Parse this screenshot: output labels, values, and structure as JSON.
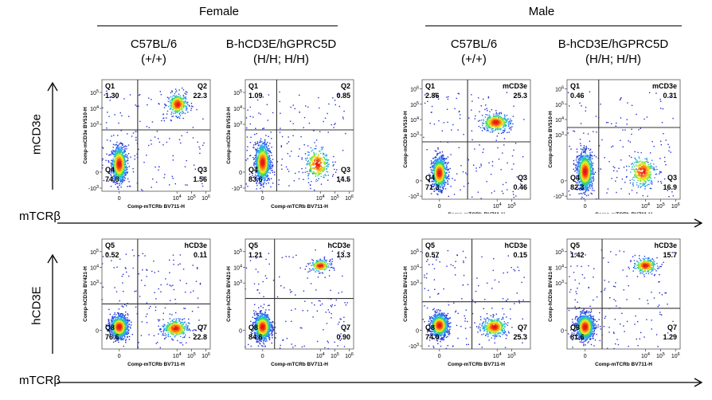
{
  "groups": [
    {
      "label": "Female",
      "strains": [
        {
          "name": "C57BL/6",
          "genotype": "(+/+)"
        },
        {
          "name": "B-hCD3E/hGPRC5D",
          "genotype": "(H/H; H/H)"
        }
      ]
    },
    {
      "label": "Male",
      "strains": [
        {
          "name": "C57BL/6",
          "genotype": "(+/+)"
        },
        {
          "name": "B-hCD3E/hGPRC5D",
          "genotype": "(H/H; H/H)"
        }
      ]
    }
  ],
  "row_labels": {
    "row1_y": "mCD3e",
    "row2_y": "hCD3E",
    "x_word": "mTCRβ"
  },
  "chart_data": [
    {
      "type": "scatter",
      "row": 1,
      "col": 1,
      "x_label": "Comp-mTCRb BV711-H",
      "y_label": "Comp-mCD3e BV510-H",
      "x_ticks": [
        "0",
        "10^4",
        "10^5",
        "10^6"
      ],
      "y_ticks": [
        "10^5",
        "10^4",
        "10^3",
        "0",
        "-10^3"
      ],
      "quadrants": {
        "Q1": {
          "name": "Q1",
          "value": "1.30"
        },
        "Q2": {
          "name": "Q2",
          "value": "22.3"
        },
        "Q3": {
          "name": "Q3",
          "value": "1.56"
        },
        "Q4": {
          "name": "Q4",
          "value": "74.8"
        }
      },
      "populations": [
        {
          "cx": 0,
          "cy": 0.5,
          "sx": 0.25,
          "sy": 0.55,
          "w": 0.75
        },
        {
          "cx": 4.05,
          "cy": 4.25,
          "sx": 0.35,
          "sy": 0.35,
          "w": 0.22
        }
      ]
    },
    {
      "type": "scatter",
      "row": 1,
      "col": 2,
      "x_label": "Comp-mTCRb BV711-H",
      "y_label": "Comp-mCD3e BV510-H",
      "x_ticks": [
        "0",
        "10^4",
        "10^5",
        "10^6"
      ],
      "y_ticks": [
        "10^5",
        "10^4",
        "10^3",
        "0",
        "-10^3"
      ],
      "quadrants": {
        "Q1": {
          "name": "Q1",
          "value": "1.09"
        },
        "Q2": {
          "name": "Q2",
          "value": "0.85"
        },
        "Q3": {
          "name": "Q3",
          "value": "14.5"
        },
        "Q4": {
          "name": "Q4",
          "value": "83.6"
        }
      },
      "populations": [
        {
          "cx": 0,
          "cy": 0.6,
          "sx": 0.25,
          "sy": 0.6,
          "w": 0.8
        },
        {
          "cx": 3.8,
          "cy": 0.5,
          "sx": 0.45,
          "sy": 0.55,
          "w": 0.15
        }
      ]
    },
    {
      "type": "scatter",
      "row": 1,
      "col": 3,
      "x_label": "Comp-mTCRb BV711-H",
      "y_label": "Comp-mCD3e BV510-H",
      "x_ticks": [
        "0",
        "10^4",
        "10^5"
      ],
      "y_ticks": [
        "10^6",
        "10^5",
        "10^4",
        "10^3",
        "0",
        "-10^3"
      ],
      "quadrants": {
        "Q1": {
          "name": "Q1",
          "value": "2.86"
        },
        "Q2": {
          "name": "mCD3e",
          "value": "25.3"
        },
        "Q3": {
          "name": "Q3",
          "value": "0.46"
        },
        "Q4": {
          "name": "Q4",
          "value": "71.3"
        }
      },
      "populations": [
        {
          "cx": 0,
          "cy": 0.5,
          "sx": 0.25,
          "sy": 0.5,
          "w": 0.7
        },
        {
          "cx": 3.9,
          "cy": 3.8,
          "sx": 0.5,
          "sy": 0.3,
          "w": 0.25
        }
      ]
    },
    {
      "type": "scatter",
      "row": 1,
      "col": 4,
      "x_label": "Comp-mTCRb BV711-H",
      "y_label": "Comp-mCD3e BV510-H",
      "x_ticks": [
        "0",
        "10^4",
        "10^5",
        "10^6"
      ],
      "y_ticks": [
        "10^6",
        "10^5",
        "10^4",
        "10^3",
        "0",
        "-10^3"
      ],
      "quadrants": {
        "Q1": {
          "name": "Q1",
          "value": "0.46"
        },
        "Q2": {
          "name": "mCD3e",
          "value": "0.31"
        },
        "Q3": {
          "name": "Q3",
          "value": "16.9"
        },
        "Q4": {
          "name": "Q4",
          "value": "82.3"
        }
      },
      "populations": [
        {
          "cx": 0,
          "cy": 0.6,
          "sx": 0.25,
          "sy": 0.6,
          "w": 0.8
        },
        {
          "cx": 3.8,
          "cy": 0.6,
          "sx": 0.45,
          "sy": 0.55,
          "w": 0.17
        }
      ]
    },
    {
      "type": "scatter",
      "row": 2,
      "col": 1,
      "x_label": "Comp-mTCRb BV711-H",
      "y_label": "Comp-hCD3e BV421-H",
      "x_ticks": [
        "0",
        "10^4",
        "10^5",
        "10^6"
      ],
      "y_ticks": [
        "10^5",
        "10^4",
        "10^3",
        "0"
      ],
      "quadrants": {
        "Q1": {
          "name": "Q5",
          "value": "0.52"
        },
        "Q2": {
          "name": "hCD3e",
          "value": "0.11"
        },
        "Q3": {
          "name": "Q7",
          "value": "22.8"
        },
        "Q4": {
          "name": "Q8",
          "value": "76.6"
        }
      },
      "populations": [
        {
          "cx": 0,
          "cy": 0.2,
          "sx": 0.3,
          "sy": 0.35,
          "w": 0.75
        },
        {
          "cx": 3.9,
          "cy": 0.1,
          "sx": 0.45,
          "sy": 0.3,
          "w": 0.23
        }
      ]
    },
    {
      "type": "scatter",
      "row": 2,
      "col": 2,
      "x_label": "Comp-mTCRb BV711-H",
      "y_label": "Comp-hCD3e BV421-H",
      "x_ticks": [
        "0",
        "10^4",
        "10^5",
        "10^6"
      ],
      "y_ticks": [
        "10^5",
        "10^4",
        "10^3",
        "0"
      ],
      "quadrants": {
        "Q1": {
          "name": "Q5",
          "value": "1.21"
        },
        "Q2": {
          "name": "hCD3e",
          "value": "13.3"
        },
        "Q3": {
          "name": "Q7",
          "value": "0.90"
        },
        "Q4": {
          "name": "Q8",
          "value": "84.6"
        }
      },
      "populations": [
        {
          "cx": 0,
          "cy": 0.2,
          "sx": 0.28,
          "sy": 0.4,
          "w": 0.85
        },
        {
          "cx": 4.0,
          "cy": 4.1,
          "sx": 0.35,
          "sy": 0.2,
          "w": 0.13
        }
      ]
    },
    {
      "type": "scatter",
      "row": 2,
      "col": 3,
      "x_label": "Comp-mTCRb BV711-H",
      "y_label": "Comp-hCD3e BV421-H",
      "x_ticks": [
        "0",
        "10^4",
        "10^5"
      ],
      "y_ticks": [
        "10^5",
        "10^4",
        "10^3",
        "0",
        "-10^3"
      ],
      "quadrants": {
        "Q1": {
          "name": "Q5",
          "value": "0.57"
        },
        "Q2": {
          "name": "hCD3e",
          "value": "0.15"
        },
        "Q3": {
          "name": "Q7",
          "value": "25.3"
        },
        "Q4": {
          "name": "Q8",
          "value": "74.0"
        }
      },
      "populations": [
        {
          "cx": 0,
          "cy": 0.3,
          "sx": 0.3,
          "sy": 0.35,
          "w": 0.74
        },
        {
          "cx": 3.8,
          "cy": 0.2,
          "sx": 0.45,
          "sy": 0.3,
          "w": 0.25
        }
      ]
    },
    {
      "type": "scatter",
      "row": 2,
      "col": 4,
      "x_label": "Comp-mTCRb BV711-H",
      "y_label": "Comp-hCD3e BV421-H",
      "x_ticks": [
        "0",
        "10^4",
        "10^5",
        "10^6"
      ],
      "y_ticks": [
        "10^5",
        "10^4",
        "10^3",
        "0"
      ],
      "quadrants": {
        "Q1": {
          "name": "Q5",
          "value": "1.42"
        },
        "Q2": {
          "name": "hCD3e",
          "value": "15.7"
        },
        "Q3": {
          "name": "Q7",
          "value": "1.29"
        },
        "Q4": {
          "name": "Q8",
          "value": "81.6"
        }
      },
      "populations": [
        {
          "cx": 0,
          "cy": 0.2,
          "sx": 0.28,
          "sy": 0.4,
          "w": 0.82
        },
        {
          "cx": 4.0,
          "cy": 4.1,
          "sx": 0.4,
          "sy": 0.25,
          "w": 0.16
        }
      ]
    }
  ]
}
